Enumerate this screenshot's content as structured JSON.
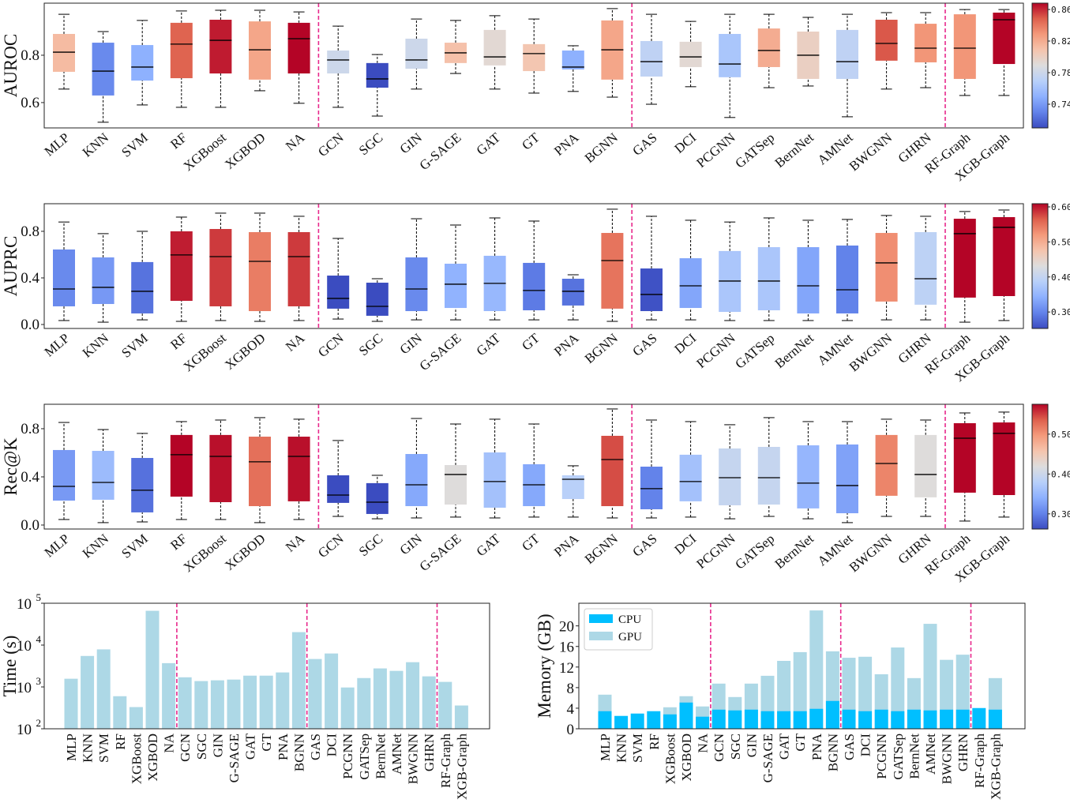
{
  "group_separator_color": "#e8288c",
  "colormap": "coolwarm",
  "chart_data": [
    {
      "type": "box",
      "ylabel": "AUROC",
      "ylim": [
        0.493,
        1.02
      ],
      "yticks": [
        0.6,
        0.8
      ],
      "ytick_labels": [
        "0.6",
        "0.8"
      ],
      "colorbar": {
        "range": [
          0.71,
          0.868
        ],
        "ticks": [
          0.74,
          0.78,
          0.82,
          0.86
        ],
        "labels": [
          "0.74",
          "0.78",
          "0.82",
          "0.86"
        ]
      },
      "group_separators_after": [
        "NA",
        "BGNN",
        "GHRN"
      ],
      "categories": [
        "MLP",
        "KNN",
        "SVM",
        "RF",
        "XGBoost",
        "XGBOD",
        "NA",
        "GCN",
        "SGC",
        "GIN",
        "G-SAGE",
        "GAT",
        "GT",
        "PNA",
        "BGNN",
        "GAS",
        "DCI",
        "PCGNN",
        "GATSep",
        "BernNet",
        "AMNet",
        "BWGNN",
        "GHRN",
        "RF-Graph",
        "XGB-Graph"
      ],
      "stats_order": [
        "whisker_low",
        "q1",
        "median",
        "q3",
        "whisker_high"
      ],
      "boxes": [
        [
          0.657,
          0.73,
          0.813,
          0.89,
          0.973
        ],
        [
          0.517,
          0.63,
          0.733,
          0.853,
          0.9
        ],
        [
          0.59,
          0.693,
          0.75,
          0.843,
          0.947
        ],
        [
          0.58,
          0.703,
          0.847,
          0.937,
          0.987
        ],
        [
          0.58,
          0.723,
          0.863,
          0.95,
          0.99
        ],
        [
          0.65,
          0.697,
          0.823,
          0.943,
          0.99
        ],
        [
          0.597,
          0.723,
          0.87,
          0.937,
          0.983
        ],
        [
          0.58,
          0.723,
          0.78,
          0.82,
          0.923
        ],
        [
          0.543,
          0.663,
          0.7,
          0.767,
          0.803
        ],
        [
          0.657,
          0.743,
          0.78,
          0.87,
          0.953
        ],
        [
          0.723,
          0.767,
          0.81,
          0.853,
          0.947
        ],
        [
          0.657,
          0.757,
          0.793,
          0.907,
          0.967
        ],
        [
          0.64,
          0.733,
          0.807,
          0.847,
          0.953
        ],
        [
          0.647,
          0.74,
          0.75,
          0.82,
          0.84
        ],
        [
          0.623,
          0.697,
          0.823,
          0.947,
          0.997
        ],
        [
          0.593,
          0.71,
          0.773,
          0.86,
          0.973
        ],
        [
          0.667,
          0.75,
          0.793,
          0.857,
          0.943
        ],
        [
          0.537,
          0.707,
          0.763,
          0.89,
          0.973
        ],
        [
          0.663,
          0.75,
          0.82,
          0.913,
          0.973
        ],
        [
          0.67,
          0.7,
          0.8,
          0.9,
          0.96
        ],
        [
          0.54,
          0.7,
          0.773,
          0.907,
          0.973
        ],
        [
          0.657,
          0.777,
          0.85,
          0.95,
          0.98
        ],
        [
          0.663,
          0.77,
          0.83,
          0.933,
          0.98
        ],
        [
          0.63,
          0.7,
          0.83,
          0.973,
          0.993
        ],
        [
          0.63,
          0.763,
          0.95,
          0.98,
          0.993
        ]
      ]
    },
    {
      "type": "box",
      "ylabel": "AUPRC",
      "ylim": [
        -0.034,
        1.037
      ],
      "yticks": [
        0.0,
        0.4,
        0.8
      ],
      "ytick_labels": [
        "0.0",
        "0.4",
        "0.8"
      ],
      "colorbar": {
        "range": [
          0.253,
          0.609
        ],
        "ticks": [
          0.3,
          0.4,
          0.5,
          0.6
        ],
        "labels": [
          "0.30",
          "0.40",
          "0.50",
          "0.60"
        ]
      },
      "group_separators_after": [
        "NA",
        "BGNN",
        "GHRN"
      ],
      "categories": [
        "MLP",
        "KNN",
        "SVM",
        "RF",
        "XGBoost",
        "XGBOD",
        "NA",
        "GCN",
        "SGC",
        "GIN",
        "G-SAGE",
        "GAT",
        "GT",
        "PNA",
        "BGNN",
        "GAS",
        "DCI",
        "PCGNN",
        "GATSep",
        "BernNet",
        "AMNet",
        "BWGNN",
        "GHRN",
        "RF-Graph",
        "XGB-Graph"
      ],
      "stats_order": [
        "whisker_low",
        "q1",
        "median",
        "q3",
        "whisker_high"
      ],
      "boxes": [
        [
          0.034,
          0.156,
          0.305,
          0.644,
          0.88
        ],
        [
          0.02,
          0.176,
          0.319,
          0.576,
          0.78
        ],
        [
          0.04,
          0.095,
          0.285,
          0.536,
          0.8
        ],
        [
          0.027,
          0.203,
          0.597,
          0.8,
          0.922
        ],
        [
          0.034,
          0.156,
          0.583,
          0.82,
          0.956
        ],
        [
          0.027,
          0.115,
          0.542,
          0.793,
          0.956
        ],
        [
          0.034,
          0.156,
          0.583,
          0.793,
          0.929
        ],
        [
          0.047,
          0.136,
          0.224,
          0.42,
          0.739
        ],
        [
          0.027,
          0.075,
          0.156,
          0.359,
          0.393
        ],
        [
          0.04,
          0.115,
          0.305,
          0.576,
          0.908
        ],
        [
          0.04,
          0.142,
          0.346,
          0.522,
          0.854
        ],
        [
          0.04,
          0.115,
          0.353,
          0.59,
          0.915
        ],
        [
          0.04,
          0.122,
          0.292,
          0.529,
          0.888
        ],
        [
          0.04,
          0.163,
          0.285,
          0.393,
          0.427
        ],
        [
          0.027,
          0.136,
          0.549,
          0.786,
          0.99
        ],
        [
          0.04,
          0.115,
          0.258,
          0.481,
          0.929
        ],
        [
          0.04,
          0.142,
          0.332,
          0.569,
          0.895
        ],
        [
          0.034,
          0.108,
          0.373,
          0.631,
          0.88
        ],
        [
          0.034,
          0.122,
          0.373,
          0.664,
          0.915
        ],
        [
          0.034,
          0.095,
          0.332,
          0.664,
          0.895
        ],
        [
          0.034,
          0.095,
          0.298,
          0.678,
          0.902
        ],
        [
          0.04,
          0.197,
          0.529,
          0.786,
          0.936
        ],
        [
          0.04,
          0.17,
          0.393,
          0.793,
          0.929
        ],
        [
          0.02,
          0.231,
          0.78,
          0.908,
          0.97
        ],
        [
          0.034,
          0.244,
          0.834,
          0.922,
          0.983
        ]
      ]
    },
    {
      "type": "box",
      "ylabel": "Rec@K",
      "ylim": [
        -0.033,
        1.003
      ],
      "yticks": [
        0.0,
        0.4,
        0.8
      ],
      "ytick_labels": [
        "0.0",
        "0.4",
        "0.8"
      ],
      "colorbar": {
        "range": [
          0.262,
          0.575
        ],
        "ticks": [
          0.3,
          0.4,
          0.5
        ],
        "labels": [
          "0.30",
          "0.40",
          "0.50"
        ]
      },
      "group_separators_after": [
        "NA",
        "BGNN",
        "GHRN"
      ],
      "categories": [
        "MLP",
        "KNN",
        "SVM",
        "RF",
        "XGBoost",
        "XGBOD",
        "NA",
        "GCN",
        "SGC",
        "GIN",
        "G-SAGE",
        "GAT",
        "GT",
        "PNA",
        "BGNN",
        "GAS",
        "DCI",
        "PCGNN",
        "GATSep",
        "BernNet",
        "AMNet",
        "BWGNN",
        "GHRN",
        "RF-Graph",
        "XGB-Graph"
      ],
      "stats_order": [
        "whisker_low",
        "q1",
        "median",
        "q3",
        "whisker_high"
      ],
      "boxes": [
        [
          0.046,
          0.203,
          0.321,
          0.623,
          0.852
        ],
        [
          0.02,
          0.21,
          0.354,
          0.616,
          0.793
        ],
        [
          0.026,
          0.105,
          0.289,
          0.557,
          0.761
        ],
        [
          0.046,
          0.236,
          0.584,
          0.748,
          0.859
        ],
        [
          0.046,
          0.19,
          0.57,
          0.748,
          0.872
        ],
        [
          0.02,
          0.157,
          0.525,
          0.734,
          0.892
        ],
        [
          0.046,
          0.197,
          0.57,
          0.734,
          0.879
        ],
        [
          0.072,
          0.184,
          0.249,
          0.413,
          0.702
        ],
        [
          0.052,
          0.092,
          0.19,
          0.348,
          0.413
        ],
        [
          0.059,
          0.157,
          0.334,
          0.59,
          0.885
        ],
        [
          0.066,
          0.17,
          0.42,
          0.498,
          0.839
        ],
        [
          0.059,
          0.144,
          0.361,
          0.603,
          0.879
        ],
        [
          0.066,
          0.157,
          0.334,
          0.505,
          0.839
        ],
        [
          0.066,
          0.216,
          0.38,
          0.413,
          0.492
        ],
        [
          0.059,
          0.157,
          0.544,
          0.741,
          0.964
        ],
        [
          0.059,
          0.131,
          0.302,
          0.485,
          0.872
        ],
        [
          0.066,
          0.197,
          0.361,
          0.584,
          0.859
        ],
        [
          0.052,
          0.164,
          0.393,
          0.636,
          0.833
        ],
        [
          0.072,
          0.17,
          0.393,
          0.649,
          0.892
        ],
        [
          0.052,
          0.138,
          0.348,
          0.662,
          0.859
        ],
        [
          0.02,
          0.098,
          0.328,
          0.669,
          0.859
        ],
        [
          0.072,
          0.243,
          0.511,
          0.748,
          0.879
        ],
        [
          0.072,
          0.23,
          0.42,
          0.748,
          0.872
        ],
        [
          0.033,
          0.269,
          0.721,
          0.846,
          0.931
        ],
        [
          0.066,
          0.249,
          0.761,
          0.852,
          0.938
        ]
      ]
    },
    {
      "type": "bar",
      "ylabel": "Time (s)",
      "yscale": "log",
      "ylim": [
        100,
        100000
      ],
      "yticks": [
        100,
        1000,
        10000,
        100000
      ],
      "ytick_labels": [
        {
          "base": "10",
          "exp": "2"
        },
        {
          "base": "10",
          "exp": "3"
        },
        {
          "base": "10",
          "exp": "4"
        },
        {
          "base": "10",
          "exp": "5"
        }
      ],
      "bar_color": "#add8e6",
      "group_separators_after": [
        "NA",
        "BGNN",
        "GHRN"
      ],
      "categories": [
        "MLP",
        "KNN",
        "SVM",
        "RF",
        "XGBoost",
        "XGBOD",
        "NA",
        "GCN",
        "SGC",
        "GIN",
        "G-SAGE",
        "GAT",
        "GT",
        "PNA",
        "BGNN",
        "GAS",
        "DCI",
        "PCGNN",
        "GATSep",
        "BernNet",
        "AMNet",
        "BWGNN",
        "GHRN",
        "RF-Graph",
        "XGB-Graph"
      ],
      "values": [
        1570,
        5500,
        7900,
        600,
        330,
        66000,
        3700,
        1700,
        1380,
        1440,
        1500,
        1860,
        1860,
        2220,
        20400,
        4650,
        6300,
        970,
        1630,
        2770,
        2420,
        3900,
        1790,
        1320,
        360
      ]
    },
    {
      "type": "bar",
      "ylabel": "Memory (GB)",
      "ylim": [
        0,
        24.4
      ],
      "yticks": [
        0,
        4,
        8,
        12,
        16,
        20
      ],
      "ytick_labels": [
        "0",
        "4",
        "8",
        "12",
        "16",
        "20"
      ],
      "legend": "top-left",
      "group_separators_after": [
        "NA",
        "BGNN",
        "GHRN"
      ],
      "categories": [
        "MLP",
        "KNN",
        "SVM",
        "RF",
        "XGBoost",
        "XGBOD",
        "NA",
        "GCN",
        "SGC",
        "GIN",
        "G-SAGE",
        "GAT",
        "GT",
        "PNA",
        "BGNN",
        "GAS",
        "DCI",
        "PCGNN",
        "GATSep",
        "BernNet",
        "AMNet",
        "BWGNN",
        "GHRN",
        "RF-Graph",
        "XGB-Graph"
      ],
      "series": [
        {
          "name": "CPU",
          "color": "#00bfff",
          "values": [
            3.42,
            2.5,
            2.96,
            3.42,
            2.8,
            5.1,
            2.35,
            3.72,
            3.57,
            3.72,
            3.42,
            3.42,
            3.42,
            3.88,
            5.41,
            3.72,
            3.42,
            3.72,
            3.42,
            3.72,
            3.57,
            3.72,
            3.72,
            4.03,
            3.72
          ]
        },
        {
          "name": "GPU",
          "color": "#add8e6",
          "values": [
            6.63,
            null,
            null,
            null,
            4.18,
            6.33,
            4.34,
            8.78,
            6.17,
            8.78,
            10.3,
            13.2,
            14.9,
            23.0,
            15.05,
            13.8,
            14.0,
            10.6,
            15.8,
            9.85,
            20.4,
            13.4,
            14.4,
            null,
            9.85
          ]
        }
      ]
    }
  ]
}
